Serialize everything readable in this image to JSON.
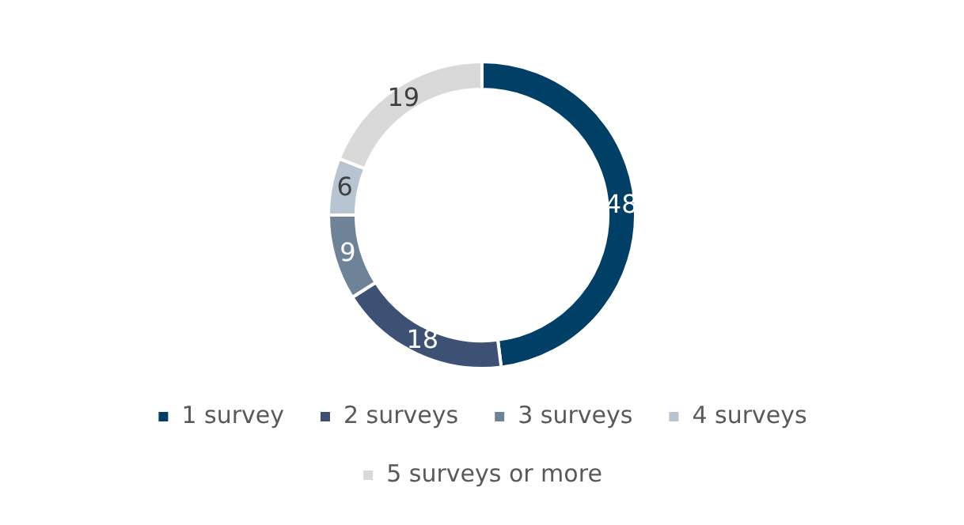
{
  "chart_data": {
    "type": "donut",
    "categories": [
      "1 survey",
      "2 surveys",
      "3 surveys",
      "4 surveys",
      "5 surveys or more"
    ],
    "values": [
      48,
      18,
      9,
      6,
      19
    ],
    "colors": [
      "#003f66",
      "#3c5173",
      "#6f8398",
      "#b7c4d2",
      "#d9d9d9"
    ],
    "data_labels": true,
    "legend": "bottom"
  }
}
